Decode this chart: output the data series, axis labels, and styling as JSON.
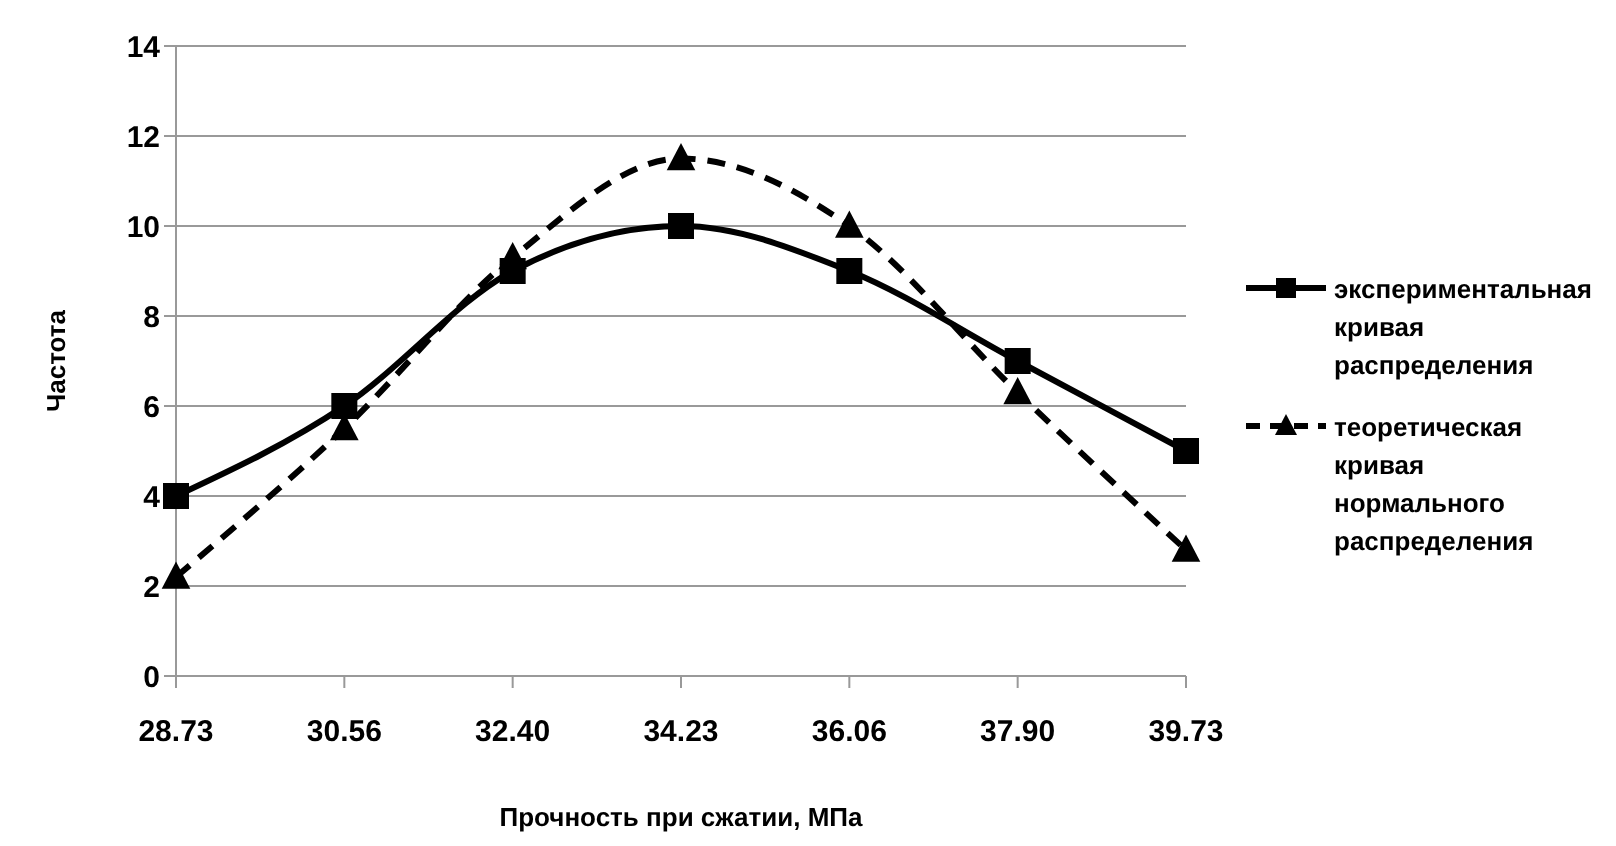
{
  "chart_data": {
    "type": "line",
    "xlabel": "Прочность при сжатии, МПа",
    "ylabel": "Частота",
    "categories": [
      "28.73",
      "30.56",
      "32.40",
      "34.23",
      "36.06",
      "37.90",
      "39.73"
    ],
    "series": [
      {
        "name": "экспериментальная кривая распределения",
        "color": "#000000",
        "marker": "square",
        "line_style": "solid",
        "values": [
          4,
          6,
          9,
          10,
          9,
          7,
          5
        ]
      },
      {
        "name": "теоретическая кривая нормального распределения",
        "color": "#000000",
        "marker": "triangle",
        "line_style": "dashed",
        "values": [
          2.2,
          5.5,
          9.3,
          11.5,
          10.0,
          6.3,
          2.8
        ]
      }
    ],
    "ylim": [
      0,
      14
    ],
    "yticks": [
      0,
      2,
      4,
      6,
      8,
      10,
      12,
      14
    ],
    "grid": "y",
    "legend": "right"
  }
}
